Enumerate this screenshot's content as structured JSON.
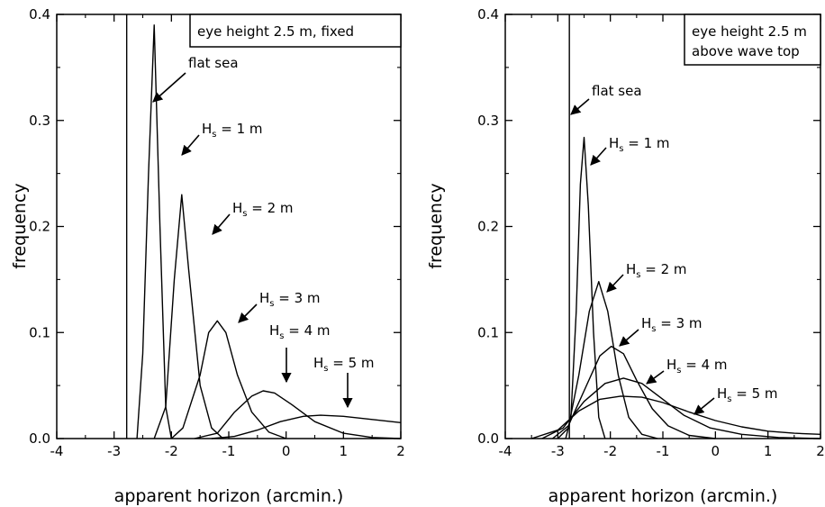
{
  "chart_data": [
    {
      "type": "line",
      "title_box": "eye height 2.5 m, fixed",
      "xlabel": "apparent horizon (arcmin.)",
      "ylabel": "frequency",
      "xlim": [
        -4,
        2
      ],
      "ylim": [
        0,
        0.4
      ],
      "x_ticks": [
        "-4",
        "-3",
        "-2",
        "-1",
        "0",
        "1",
        "2"
      ],
      "y_ticks": [
        "0.0",
        "0.1",
        "0.2",
        "0.3",
        "0.4"
      ],
      "flat_sea": {
        "label": "flat sea",
        "x": -2.78
      },
      "series": [
        {
          "name": "Hs = 1 m",
          "points": [
            [
              -2.6,
              0
            ],
            [
              -2.5,
              0.08
            ],
            [
              -2.4,
              0.25
            ],
            [
              -2.3,
              0.39
            ],
            [
              -2.2,
              0.2
            ],
            [
              -2.1,
              0.03
            ],
            [
              -2.0,
              0
            ]
          ]
        },
        {
          "name": "Hs = 2 m",
          "points": [
            [
              -2.3,
              0
            ],
            [
              -2.1,
              0.03
            ],
            [
              -1.95,
              0.15
            ],
            [
              -1.82,
              0.23
            ],
            [
              -1.7,
              0.16
            ],
            [
              -1.5,
              0.05
            ],
            [
              -1.3,
              0.01
            ],
            [
              -1.1,
              0
            ]
          ]
        },
        {
          "name": "Hs = 3 m",
          "points": [
            [
              -2.0,
              0
            ],
            [
              -1.8,
              0.01
            ],
            [
              -1.5,
              0.06
            ],
            [
              -1.35,
              0.1
            ],
            [
              -1.2,
              0.111
            ],
            [
              -1.05,
              0.1
            ],
            [
              -0.85,
              0.06
            ],
            [
              -0.6,
              0.025
            ],
            [
              -0.3,
              0.006
            ],
            [
              0.0,
              0
            ]
          ]
        },
        {
          "name": "Hs = 4 m",
          "points": [
            [
              -1.6,
              0
            ],
            [
              -1.2,
              0.005
            ],
            [
              -0.9,
              0.025
            ],
            [
              -0.6,
              0.04
            ],
            [
              -0.4,
              0.045
            ],
            [
              -0.2,
              0.043
            ],
            [
              0.1,
              0.032
            ],
            [
              0.5,
              0.016
            ],
            [
              1.0,
              0.005
            ],
            [
              1.5,
              0.001
            ],
            [
              2.0,
              0
            ]
          ]
        },
        {
          "name": "Hs = 5 m",
          "points": [
            [
              -1.3,
              0
            ],
            [
              -0.9,
              0.002
            ],
            [
              -0.5,
              0.008
            ],
            [
              -0.1,
              0.016
            ],
            [
              0.3,
              0.021
            ],
            [
              0.6,
              0.022
            ],
            [
              1.0,
              0.021
            ],
            [
              1.5,
              0.018
            ],
            [
              2.0,
              0.015
            ]
          ]
        }
      ],
      "annotations": [
        {
          "text": "flat sea",
          "sub": "",
          "rest": ""
        },
        {
          "text": "H",
          "sub": "s",
          "rest": " = 1 m"
        },
        {
          "text": "H",
          "sub": "s",
          "rest": " = 2 m"
        },
        {
          "text": "H",
          "sub": "s",
          "rest": " = 3 m"
        },
        {
          "text": "H",
          "sub": "s",
          "rest": " = 4 m"
        },
        {
          "text": "H",
          "sub": "s",
          "rest": " = 5 m"
        }
      ]
    },
    {
      "type": "line",
      "title_box": [
        "eye height 2.5 m",
        "above wave top"
      ],
      "xlabel": "apparent horizon (arcmin.)",
      "ylabel": "frequency",
      "xlim": [
        -4,
        2
      ],
      "ylim": [
        0,
        0.4
      ],
      "x_ticks": [
        "-4",
        "-3",
        "-2",
        "-1",
        "0",
        "1",
        "2"
      ],
      "y_ticks": [
        "0.0",
        "0.1",
        "0.2",
        "0.3",
        "0.4"
      ],
      "flat_sea": {
        "label": "flat sea",
        "x": -2.78
      },
      "series": [
        {
          "name": "Hs = 1 m",
          "points": [
            [
              -2.85,
              0
            ],
            [
              -2.75,
              0.02
            ],
            [
              -2.65,
              0.12
            ],
            [
              -2.57,
              0.24
            ],
            [
              -2.5,
              0.284
            ],
            [
              -2.42,
              0.22
            ],
            [
              -2.32,
              0.1
            ],
            [
              -2.22,
              0.02
            ],
            [
              -2.1,
              0
            ]
          ]
        },
        {
          "name": "Hs = 2 m",
          "points": [
            [
              -3.0,
              0
            ],
            [
              -2.8,
              0.01
            ],
            [
              -2.6,
              0.06
            ],
            [
              -2.4,
              0.12
            ],
            [
              -2.22,
              0.148
            ],
            [
              -2.05,
              0.12
            ],
            [
              -1.85,
              0.06
            ],
            [
              -1.65,
              0.02
            ],
            [
              -1.4,
              0.004
            ],
            [
              -1.1,
              0
            ]
          ]
        },
        {
          "name": "Hs = 3 m",
          "points": [
            [
              -3.1,
              0
            ],
            [
              -2.8,
              0.012
            ],
            [
              -2.5,
              0.045
            ],
            [
              -2.2,
              0.078
            ],
            [
              -1.98,
              0.087
            ],
            [
              -1.75,
              0.08
            ],
            [
              -1.5,
              0.055
            ],
            [
              -1.2,
              0.028
            ],
            [
              -0.9,
              0.012
            ],
            [
              -0.5,
              0.003
            ],
            [
              0.0,
              0
            ]
          ]
        },
        {
          "name": "Hs = 4 m",
          "points": [
            [
              -3.3,
              0
            ],
            [
              -2.9,
              0.01
            ],
            [
              -2.5,
              0.035
            ],
            [
              -2.1,
              0.052
            ],
            [
              -1.75,
              0.057
            ],
            [
              -1.4,
              0.052
            ],
            [
              -1.0,
              0.037
            ],
            [
              -0.6,
              0.022
            ],
            [
              -0.1,
              0.01
            ],
            [
              0.5,
              0.004
            ],
            [
              1.2,
              0.001
            ],
            [
              2.0,
              0
            ]
          ]
        },
        {
          "name": "Hs = 5 m",
          "points": [
            [
              -3.5,
              0
            ],
            [
              -3.0,
              0.008
            ],
            [
              -2.6,
              0.026
            ],
            [
              -2.2,
              0.037
            ],
            [
              -1.8,
              0.04
            ],
            [
              -1.4,
              0.039
            ],
            [
              -1.0,
              0.034
            ],
            [
              -0.5,
              0.025
            ],
            [
              0.0,
              0.017
            ],
            [
              0.5,
              0.011
            ],
            [
              1.0,
              0.007
            ],
            [
              1.5,
              0.005
            ],
            [
              2.0,
              0.004
            ]
          ]
        }
      ],
      "annotations": [
        {
          "text": "flat sea",
          "sub": "",
          "rest": ""
        },
        {
          "text": "H",
          "sub": "s",
          "rest": " = 1 m"
        },
        {
          "text": "H",
          "sub": "s",
          "rest": " = 2 m"
        },
        {
          "text": "H",
          "sub": "s",
          "rest": " = 3 m"
        },
        {
          "text": "H",
          "sub": "s",
          "rest": " = 4 m"
        },
        {
          "text": "H",
          "sub": "s",
          "rest": " = 5 m"
        }
      ]
    }
  ]
}
